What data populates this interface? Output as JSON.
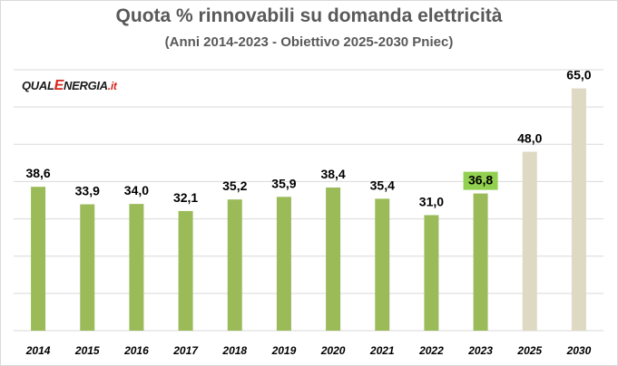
{
  "chart_data": {
    "type": "bar",
    "title": "Quota % rinnovabili su domanda elettricità",
    "subtitle": "(Anni 2014-2023 - Obiettivo 2025-2030 Pniec)",
    "categories": [
      "2014",
      "2015",
      "2016",
      "2017",
      "2018",
      "2019",
      "2020",
      "2021",
      "2022",
      "2023",
      "2025",
      "2030"
    ],
    "values": [
      38.6,
      33.9,
      34.0,
      32.1,
      35.2,
      35.9,
      38.4,
      35.4,
      31.0,
      36.8,
      48.0,
      65.0
    ],
    "value_labels": [
      "38,6",
      "33,9",
      "34,0",
      "32,1",
      "35,2",
      "35,9",
      "38,4",
      "35,4",
      "31,0",
      "36,8",
      "48,0",
      "65,0"
    ],
    "ylim": [
      0,
      70
    ],
    "grid": true,
    "highlight_index": 9,
    "colors": {
      "actual": "#9bbb59",
      "target": "#ddd9c3",
      "highlight_label_bg": "#92d050",
      "grid": "#d9d9d9",
      "title": "#595959"
    },
    "bar_kind": [
      "actual",
      "actual",
      "actual",
      "actual",
      "actual",
      "actual",
      "actual",
      "actual",
      "actual",
      "actual",
      "target",
      "target"
    ]
  },
  "logo": {
    "part1": "QUAL",
    "part2": "E",
    "part3": "NERGIA",
    "part4": ".it"
  }
}
